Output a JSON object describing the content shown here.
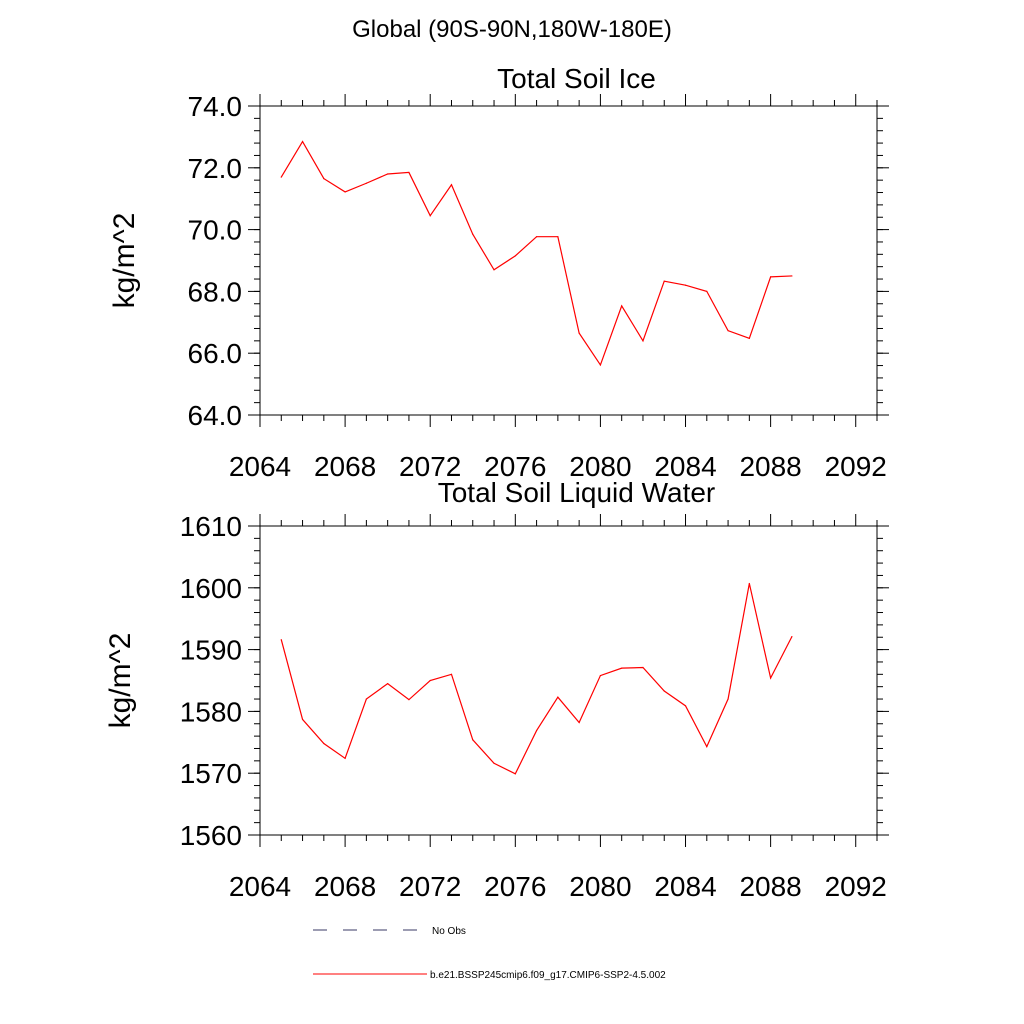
{
  "page": {
    "title": "Global (90S-90N,180W-180E)"
  },
  "legend": {
    "entries": [
      {
        "label": "No Obs",
        "style": "dashed",
        "color": "#3a3a66"
      },
      {
        "label": "b.e21.BSSP245cmip6.f09_g17.CMIP6-SSP2-4.5.002",
        "style": "solid",
        "color": "#ff0000"
      }
    ]
  },
  "chart_data": [
    {
      "type": "line",
      "title": "Total Soil Ice",
      "xlabel": "",
      "ylabel": "kg/m^2",
      "xlim": [
        2064,
        2093
      ],
      "ylim": [
        64.0,
        74.0
      ],
      "xticks": [
        2064,
        2068,
        2072,
        2076,
        2080,
        2084,
        2088,
        2092
      ],
      "xtick_labels": [
        "2064",
        "2068",
        "2072",
        "2076",
        "2080",
        "2084",
        "2088",
        "2092"
      ],
      "yticks": [
        64.0,
        66.0,
        68.0,
        70.0,
        72.0,
        74.0
      ],
      "ytick_labels": [
        "64.0",
        "66.0",
        "68.0",
        "70.0",
        "72.0",
        "74.0"
      ],
      "grid": false,
      "series": [
        {
          "name": "b.e21.BSSP245cmip6.f09_g17.CMIP6-SSP2-4.5.002",
          "color": "#ff0000",
          "x": [
            2065,
            2066,
            2067,
            2068,
            2069,
            2070,
            2071,
            2072,
            2073,
            2074,
            2075,
            2076,
            2077,
            2078,
            2079,
            2080,
            2081,
            2082,
            2083,
            2084,
            2085,
            2086,
            2087,
            2088,
            2089
          ],
          "values": [
            71.7,
            72.85,
            71.65,
            71.22,
            71.5,
            71.8,
            71.85,
            70.45,
            71.45,
            69.85,
            68.7,
            69.15,
            69.77,
            69.77,
            66.65,
            65.62,
            67.53,
            66.4,
            68.33,
            68.2,
            68.0,
            66.73,
            66.48,
            68.47,
            68.5
          ]
        }
      ]
    },
    {
      "type": "line",
      "title": "Total Soil Liquid Water",
      "xlabel": "",
      "ylabel": "kg/m^2",
      "xlim": [
        2064,
        2093
      ],
      "ylim": [
        1560,
        1610
      ],
      "xticks": [
        2064,
        2068,
        2072,
        2076,
        2080,
        2084,
        2088,
        2092
      ],
      "xtick_labels": [
        "2064",
        "2068",
        "2072",
        "2076",
        "2080",
        "2084",
        "2088",
        "2092"
      ],
      "yticks": [
        1560,
        1570,
        1580,
        1590,
        1600,
        1610
      ],
      "ytick_labels": [
        "1560",
        "1570",
        "1580",
        "1590",
        "1600",
        "1610"
      ],
      "grid": false,
      "series": [
        {
          "name": "b.e21.BSSP245cmip6.f09_g17.CMIP6-SSP2-4.5.002",
          "color": "#ff0000",
          "x": [
            2065,
            2066,
            2067,
            2068,
            2069,
            2070,
            2071,
            2072,
            2073,
            2074,
            2075,
            2076,
            2077,
            2078,
            2079,
            2080,
            2081,
            2082,
            2083,
            2084,
            2085,
            2086,
            2087,
            2088,
            2089
          ],
          "values": [
            1591.6,
            1578.7,
            1574.8,
            1572.4,
            1582.0,
            1584.5,
            1581.9,
            1585.0,
            1586.0,
            1575.4,
            1571.6,
            1569.9,
            1576.9,
            1582.3,
            1578.2,
            1585.8,
            1587.0,
            1587.1,
            1583.3,
            1580.9,
            1574.3,
            1582.0,
            1600.7,
            1585.4,
            1592.1
          ]
        }
      ]
    }
  ]
}
